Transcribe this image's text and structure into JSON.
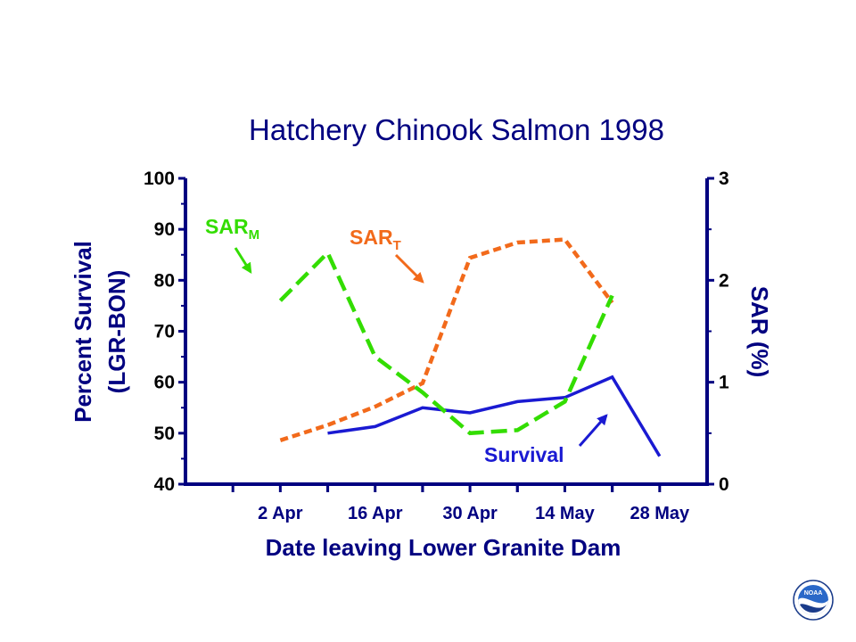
{
  "chart_data": {
    "type": "line",
    "title": "Hatchery  Chinook  Salmon 1998",
    "xlabel": "Date leaving Lower Granite  Dam",
    "ylabel_left_line1": "Percent Survival",
    "ylabel_left_line2": "(LGR-BON)",
    "ylabel_right": "SAR (%)",
    "x_ticks": [
      {
        "label": "2 Apr",
        "day": 2
      },
      {
        "label": "16 Apr",
        "day": 16
      },
      {
        "label": "30 Apr",
        "day": 30
      },
      {
        "label": "14 May",
        "day": 44
      },
      {
        "label": "28 May",
        "day": 58
      }
    ],
    "x_range_days": [
      -12,
      65
    ],
    "y_left_range": [
      40,
      100
    ],
    "y_left_ticks": [
      40,
      50,
      60,
      70,
      80,
      90,
      100
    ],
    "y_right_range": [
      0,
      3
    ],
    "y_right_ticks": [
      0,
      1,
      2,
      3
    ],
    "grid": false,
    "series": [
      {
        "name": "Survival",
        "axis": "left",
        "color": "#1a1ad2",
        "style": "solid",
        "x_days": [
          9,
          16,
          23,
          30,
          37,
          44,
          51,
          58
        ],
        "values": [
          50,
          51.3,
          55,
          54,
          56.2,
          57,
          61,
          45.5
        ]
      },
      {
        "name": "SAR_T",
        "axis": "right",
        "color": "#f26a1b",
        "style": "dashed",
        "x_days": [
          2,
          9,
          16,
          23,
          30,
          37,
          44,
          51
        ],
        "values": [
          0.43,
          0.58,
          0.76,
          0.99,
          2.22,
          2.37,
          2.4,
          1.78
        ]
      },
      {
        "name": "SAR_M",
        "axis": "right",
        "color": "#33dd00",
        "style": "dashed",
        "x_days": [
          2,
          9,
          16,
          23,
          30,
          37,
          44,
          51
        ],
        "values": [
          1.8,
          2.27,
          1.25,
          0.9,
          0.5,
          0.53,
          0.81,
          1.85
        ]
      }
    ],
    "annotations": [
      {
        "id": "sarm",
        "text": "SAR",
        "sub": "M",
        "color": "#33dd00"
      },
      {
        "id": "sart",
        "text": "SAR",
        "sub": "T",
        "color": "#f26a1b"
      },
      {
        "id": "survival",
        "text": "Survival",
        "sub": "",
        "color": "#1a1ad2"
      }
    ]
  },
  "logo": {
    "text": "NOAA",
    "icon": "noaa-logo"
  }
}
